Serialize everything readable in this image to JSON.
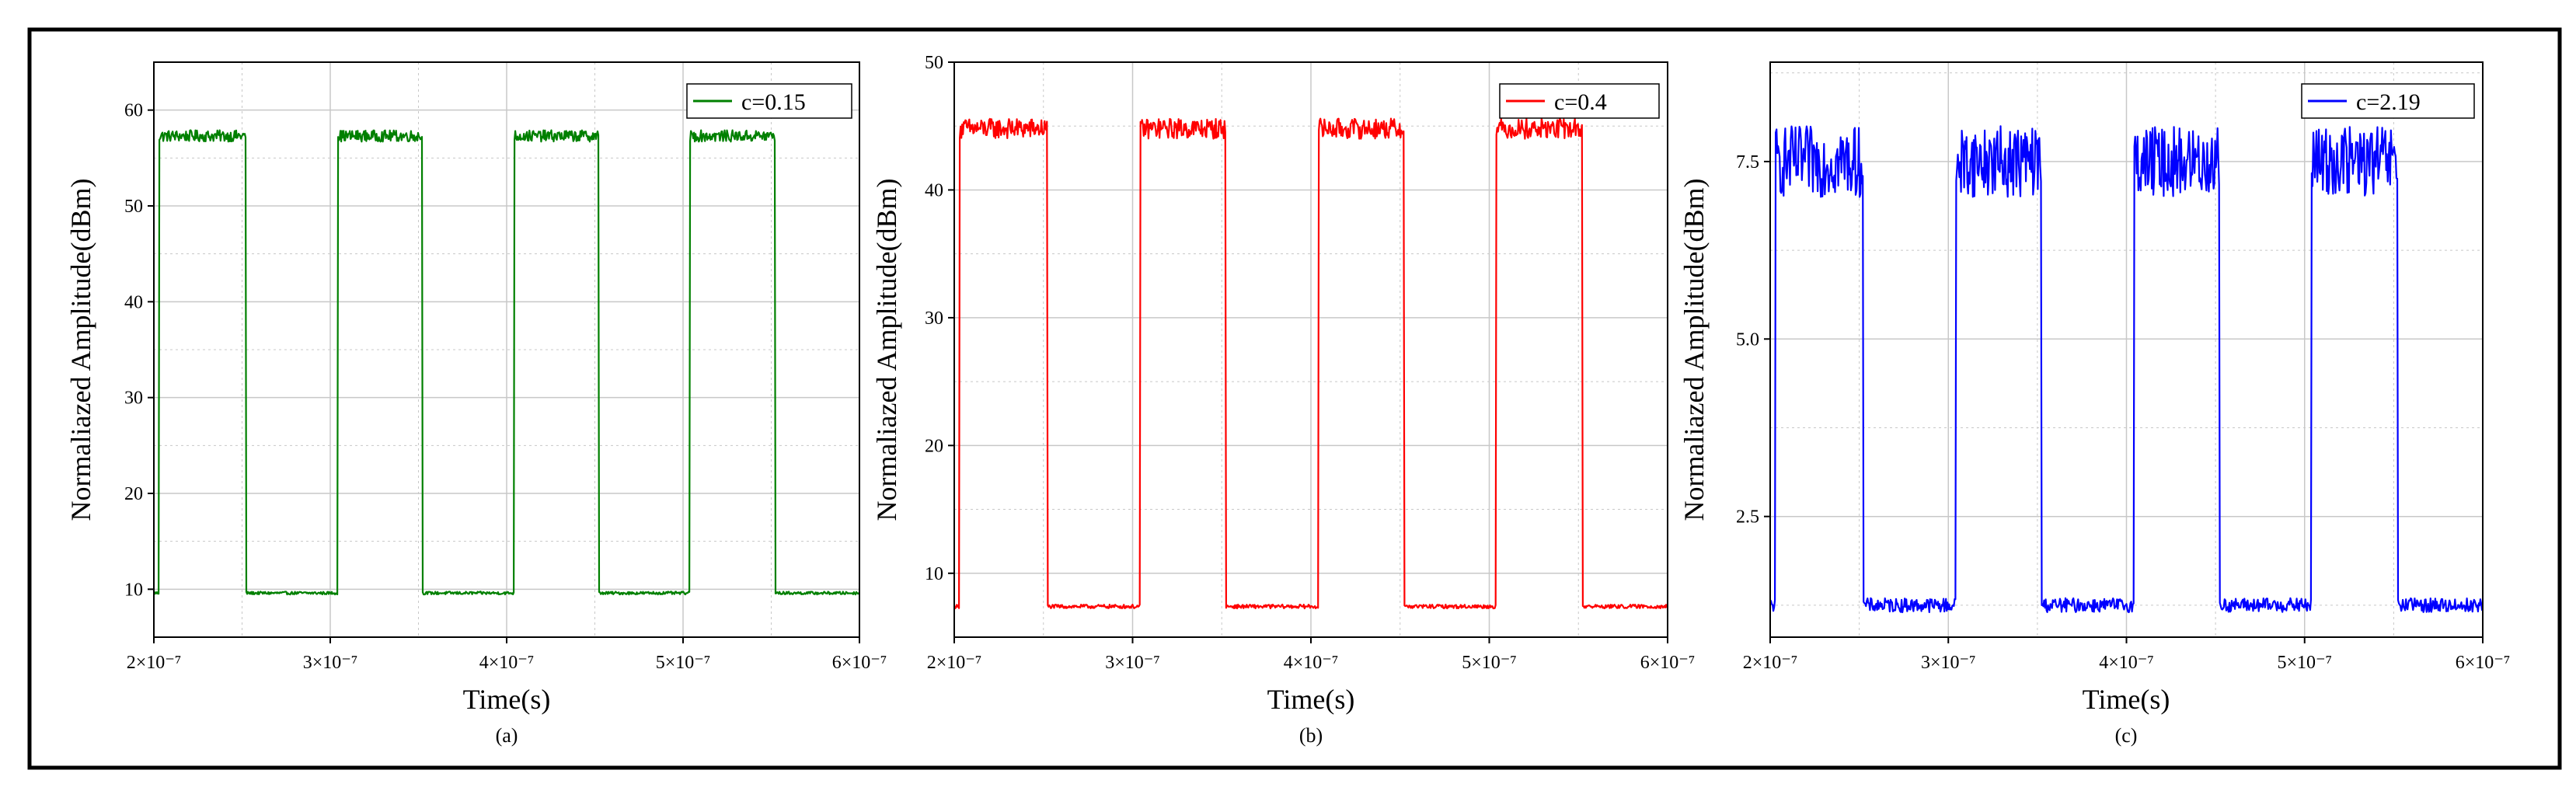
{
  "figure": {
    "background": "#ffffff",
    "frame_color": "#000000",
    "grid_color": "#c8c8c8"
  },
  "chart_data": [
    {
      "type": "line",
      "panel": "a",
      "caption": "(a)",
      "xlabel": "Time(s)",
      "ylabel": "Normaliazed Amplitude(dBm)",
      "xlim": [
        2e-07,
        6e-07
      ],
      "ylim": [
        5,
        65
      ],
      "xticks": [
        2e-07,
        3e-07,
        4e-07,
        5e-07,
        6e-07
      ],
      "xtick_labels": [
        "2×10⁻⁷",
        "3×10⁻⁷",
        "4×10⁻⁷",
        "5×10⁻⁷",
        "6×10⁻⁷"
      ],
      "yticks": [
        10,
        20,
        30,
        40,
        50,
        60
      ],
      "ytick_labels": [
        "10",
        "20",
        "30",
        "40",
        "50",
        "60"
      ],
      "grid": true,
      "legend_position": "top-right",
      "series": [
        {
          "name": "c=0.15",
          "color": "#008000",
          "high_level": 57.3,
          "low_level": 9.6,
          "high_noise": 0.6,
          "low_noise": 0.15,
          "pulses": [
            [
              2.03e-07,
              2.52e-07
            ],
            [
              3.04e-07,
              3.52e-07
            ],
            [
              4.04e-07,
              4.52e-07
            ],
            [
              5.04e-07,
              5.52e-07
            ]
          ]
        }
      ]
    },
    {
      "type": "line",
      "panel": "b",
      "caption": "(b)",
      "xlabel": "Time(s)",
      "ylabel": "Normaliazed Amplitude(dBm)",
      "xlim": [
        2e-07,
        6e-07
      ],
      "ylim": [
        5,
        50
      ],
      "xticks": [
        2e-07,
        3e-07,
        4e-07,
        5e-07,
        6e-07
      ],
      "xtick_labels": [
        "2×10⁻⁷",
        "3×10⁻⁷",
        "4×10⁻⁷",
        "5×10⁻⁷",
        "6×10⁻⁷"
      ],
      "yticks": [
        10,
        20,
        30,
        40,
        50
      ],
      "ytick_labels": [
        "10",
        "20",
        "30",
        "40",
        "50"
      ],
      "grid": true,
      "legend_position": "top-right",
      "series": [
        {
          "name": "c=0.4",
          "color": "#ff0000",
          "high_level": 44.8,
          "low_level": 7.4,
          "high_noise": 0.8,
          "low_noise": 0.15,
          "pulses": [
            [
              2.03e-07,
              2.52e-07
            ],
            [
              3.04e-07,
              3.52e-07
            ],
            [
              4.04e-07,
              4.52e-07
            ],
            [
              5.04e-07,
              5.52e-07
            ]
          ]
        }
      ]
    },
    {
      "type": "line",
      "panel": "c",
      "caption": "(c)",
      "xlabel": "Time(s)",
      "ylabel": "Normaliazed Amplitude(dBm)",
      "xlim": [
        2e-07,
        6e-07
      ],
      "ylim": [
        0.8,
        8.9
      ],
      "xticks": [
        2e-07,
        3e-07,
        4e-07,
        5e-07,
        6e-07
      ],
      "xtick_labels": [
        "2×10⁻⁷",
        "3×10⁻⁷",
        "4×10⁻⁷",
        "5×10⁻⁷",
        "6×10⁻⁷"
      ],
      "yticks": [
        2.5,
        5.0,
        7.5
      ],
      "ytick_labels": [
        "2.5",
        "5.0",
        "7.5"
      ],
      "grid": true,
      "legend_position": "top-right",
      "series": [
        {
          "name": "c=2.19",
          "color": "#0000ff",
          "high_level": 7.5,
          "low_level": 1.25,
          "high_noise": 0.5,
          "low_noise": 0.1,
          "pulses": [
            [
              2.03e-07,
              2.52e-07
            ],
            [
              3.04e-07,
              3.52e-07
            ],
            [
              4.04e-07,
              4.52e-07
            ],
            [
              5.04e-07,
              5.52e-07
            ]
          ]
        }
      ]
    }
  ]
}
